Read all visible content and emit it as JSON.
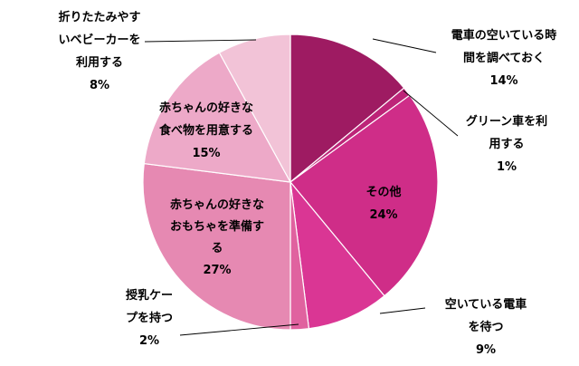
{
  "chart_data": {
    "type": "pie",
    "title": "",
    "start": "12 o'clock",
    "direction": "clockwise",
    "slices": [
      {
        "label": "電車の空いている時間を調べておく",
        "lines": [
          "電車の空いている時",
          "間を調べておく"
        ],
        "percent_text": "14%",
        "value": 14,
        "color": "#9e1b62"
      },
      {
        "label": "グリーン車を利用する",
        "lines": [
          "グリーン車を利",
          "用する"
        ],
        "percent_text": "1%",
        "value": 1,
        "color": "#bd2478"
      },
      {
        "label": "その他",
        "lines": [
          "その他"
        ],
        "percent_text": "24%",
        "value": 24,
        "color": "#cf2d88"
      },
      {
        "label": "空いている電車を待つ",
        "lines": [
          "空いている電車",
          "を待つ"
        ],
        "percent_text": "9%",
        "value": 9,
        "color": "#da3694"
      },
      {
        "label": "授乳ケープを持つ",
        "lines": [
          "授乳ケー",
          "プを持つ"
        ],
        "percent_text": "2%",
        "value": 2,
        "color": "#e0629f"
      },
      {
        "label": "赤ちゃんの好きなおもちゃを準備する",
        "lines": [
          "赤ちゃんの好きな",
          "おもちゃを準備す",
          "る"
        ],
        "percent_text": "27%",
        "value": 27,
        "color": "#e689b2"
      },
      {
        "label": "赤ちゃんの好きな食べ物を用意する",
        "lines": [
          "赤ちゃんの好きな",
          "食べ物を用意する"
        ],
        "percent_text": "15%",
        "value": 15,
        "color": "#eda9c8"
      },
      {
        "label": "折りたたみやすいベビーカーを利用する",
        "lines": [
          "折りたたみやす",
          "いベビーカーを",
          "利用する"
        ],
        "percent_text": "8%",
        "value": 8,
        "color": "#f2c3d7"
      }
    ]
  }
}
